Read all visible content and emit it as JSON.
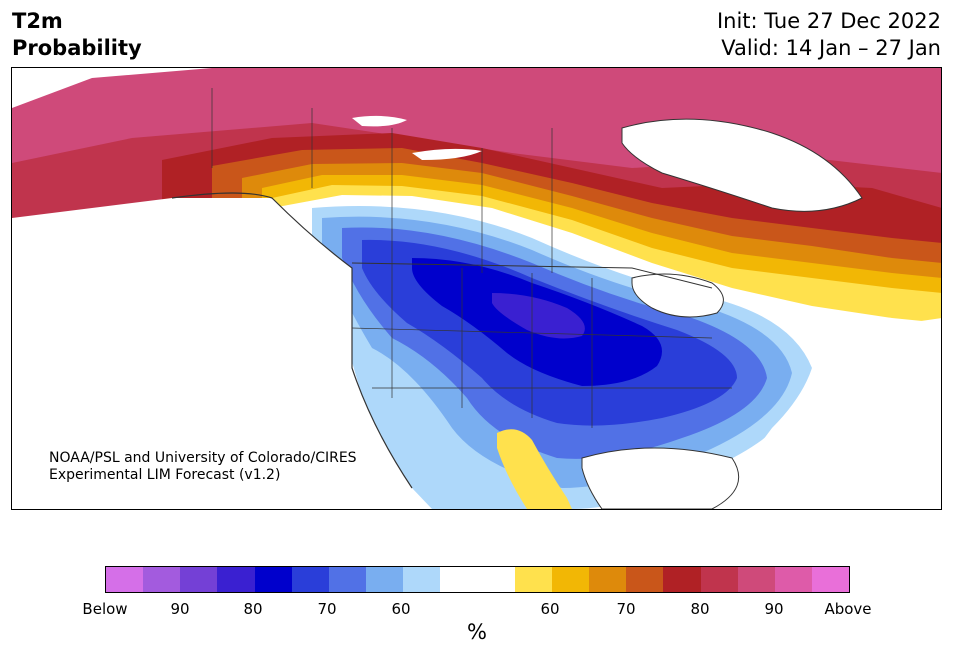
{
  "header": {
    "title_line1": "T2m",
    "title_line2": "Probability",
    "init": "Init: Tue 27 Dec 2022",
    "valid": "Valid: 14 Jan – 27 Jan"
  },
  "credit": {
    "line1": "NOAA/PSL and University of Colorado/CIRES",
    "line2": "Experimental LIM Forecast (v1.2)"
  },
  "colorbar": {
    "colors": [
      "#d56fe8",
      "#a35bde",
      "#7440d6",
      "#3a20d1",
      "#0000cc",
      "#2a3ed9",
      "#5171e6",
      "#79aef0",
      "#aed8fa",
      "#ffffff",
      "#ffffff",
      "#ffe14d",
      "#f2b705",
      "#de8a0b",
      "#c9561a",
      "#b02125",
      "#c0344d",
      "#cf4a7a",
      "#de5ba9",
      "#e96fd9"
    ],
    "ticks": [
      "Below",
      "90",
      "80",
      "70",
      "60",
      "60",
      "70",
      "80",
      "90",
      "Above"
    ],
    "unit": "%"
  }
}
